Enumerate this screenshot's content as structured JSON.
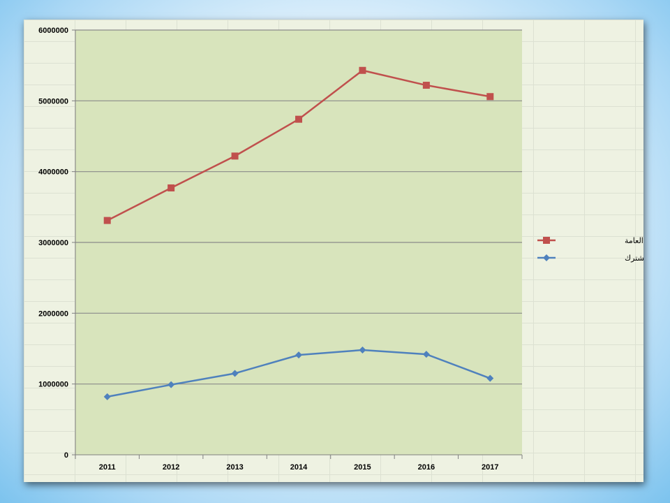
{
  "chart_data": {
    "type": "line",
    "title": "",
    "xlabel": "",
    "ylabel": "",
    "categories": [
      "2011",
      "2012",
      "2013",
      "2014",
      "2015",
      "2016",
      "2017"
    ],
    "ylim": [
      0,
      6000000
    ],
    "yticks": [
      "0",
      "1000000",
      "2000000",
      "3000000",
      "4000000",
      "5000000",
      "6000000"
    ],
    "grid": true,
    "legend_position": "right",
    "series": [
      {
        "name": "الميزانية العامة",
        "values": [
          3310000,
          3770000,
          4220000,
          4740000,
          5430000,
          5220000,
          5060000
        ],
        "color": "#c0504d",
        "marker": "square"
      },
      {
        "name": "مساهمة المال المشترك",
        "values": [
          820000,
          990000,
          1150000,
          1410000,
          1480000,
          1420000,
          1080000
        ],
        "color": "#4f81bd",
        "marker": "diamond"
      }
    ],
    "plot_background": "#d8e4bc"
  }
}
